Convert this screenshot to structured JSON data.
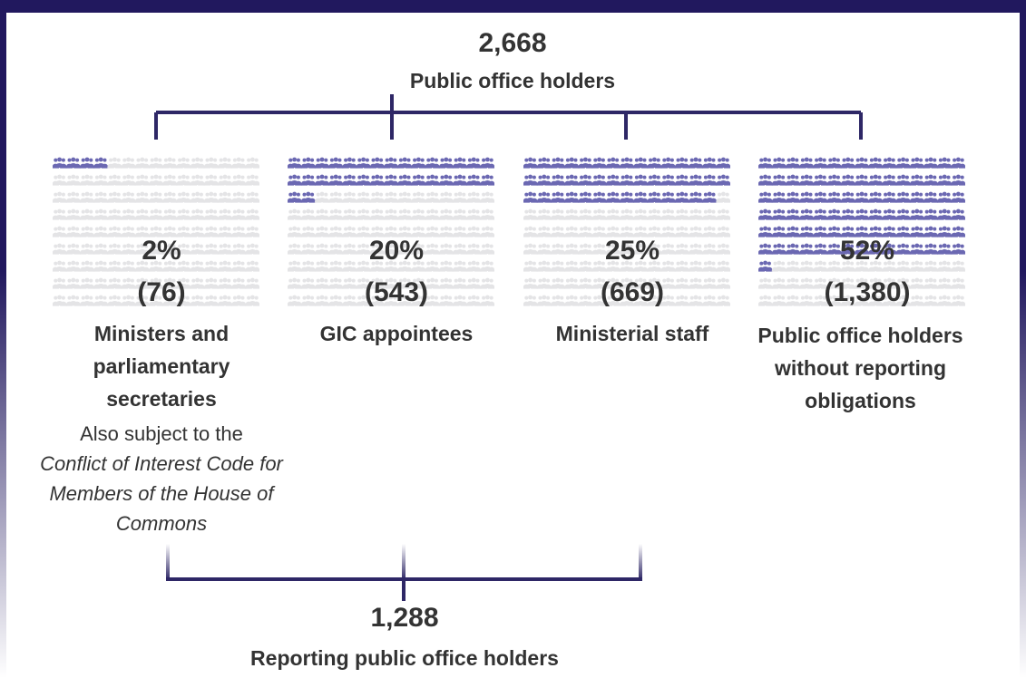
{
  "colors": {
    "frame": "#21185e",
    "connector": "#2e2766",
    "icon_filled": "#6b68b2",
    "icon_empty": "#e4e4e6",
    "text": "#333333"
  },
  "total": {
    "value": "2,668",
    "label": "Public office holders"
  },
  "reporting": {
    "value": "1,288",
    "label": "Reporting public office holders"
  },
  "groups": [
    {
      "percent": "2%",
      "count": "(76)",
      "name": "Ministers and parliamentary secretaries",
      "filled_icons": 4,
      "note_plain": "Also subject to the",
      "note_italic": "Conflict of Interest Code for Members of the House of Commons"
    },
    {
      "percent": "20%",
      "count": "(543)",
      "name": "GIC appointees",
      "filled_icons": 32
    },
    {
      "percent": "25%",
      "count": "(669)",
      "name": "Ministerial staff",
      "filled_icons": 44
    },
    {
      "percent": "52%",
      "count": "(1,380)",
      "name": "Public office holders without reporting obligations",
      "filled_icons": 91
    }
  ],
  "icon_grid": {
    "columns": 15,
    "rows": 9,
    "icon_name": "people-group-icon"
  }
}
